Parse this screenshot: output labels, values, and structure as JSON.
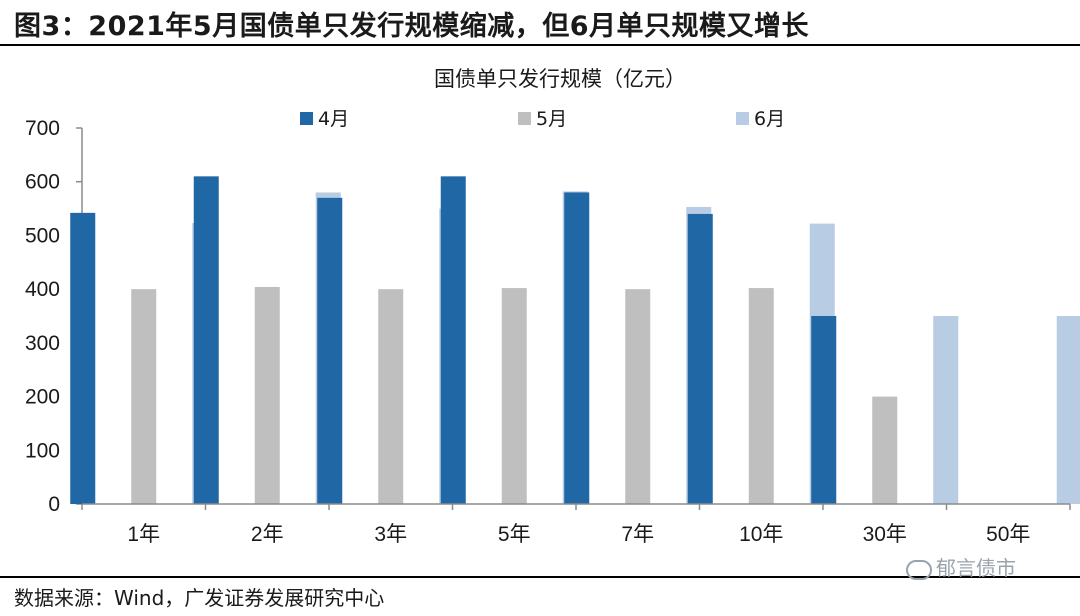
{
  "figure": {
    "title": "图3：2021年5月国债单只发行规模缩减，但6月单只规模又增长",
    "source": "数据来源：Wind，广发证券发展研究中心",
    "watermark": "郁言债市"
  },
  "chart_data": {
    "type": "bar",
    "title": "国债单只发行规模（亿元）",
    "categories": [
      "1年",
      "2年",
      "3年",
      "5年",
      "7年",
      "10年",
      "30年",
      "50年"
    ],
    "series": [
      {
        "name": "4月",
        "color": "#1f67a5",
        "values": [
          542,
          610,
          570,
          610,
          580,
          540,
          350,
          null
        ]
      },
      {
        "name": "5月",
        "color": "#bfbfbf",
        "values": [
          400,
          404,
          400,
          402,
          400,
          402,
          200,
          null
        ]
      },
      {
        "name": "6月",
        "color": "#b8cce4",
        "values": [
          523,
          580,
          550,
          582,
          553,
          522,
          350,
          350
        ]
      }
    ],
    "ylim": [
      0,
      700
    ],
    "yticks": [
      0,
      100,
      200,
      300,
      400,
      500,
      600,
      700
    ],
    "legend_position": "top",
    "grid": false
  }
}
